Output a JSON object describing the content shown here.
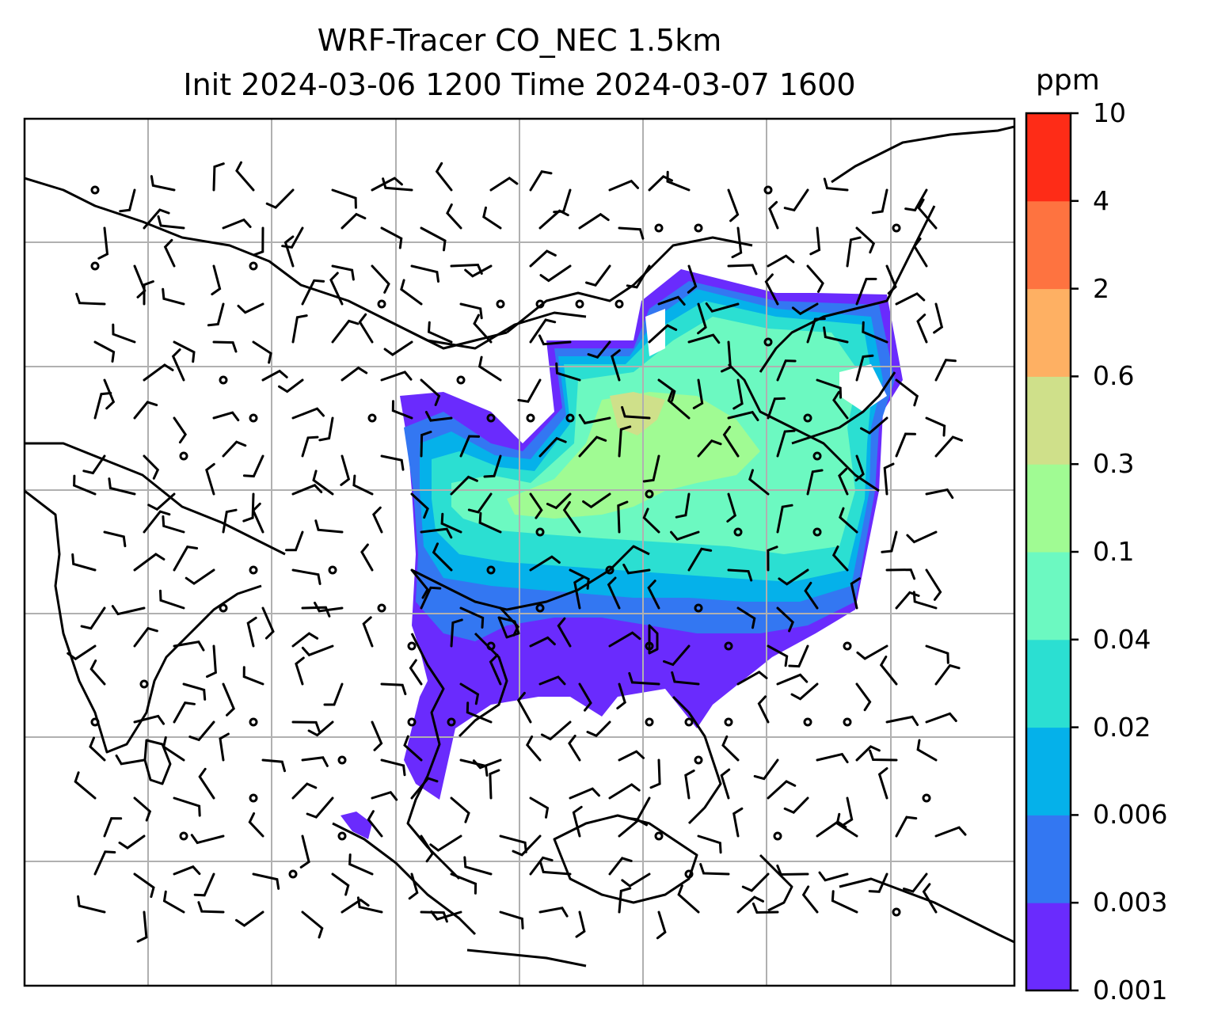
{
  "title_line1": "WRF-Tracer CO_NEC 1.5km",
  "title_line2": "Init 2024-03-06 1200 Time 2024-03-07 1600",
  "colorbar": {
    "unit": "ppm",
    "tick_labels": [
      "0.001",
      "0.003",
      "0.006",
      "0.02",
      "0.04",
      "0.1",
      "0.3",
      "0.6",
      "2",
      "4",
      "10"
    ],
    "colors": [
      "#6a2bfd",
      "#3377f2",
      "#05b1ea",
      "#2bdfd2",
      "#6cf9c1",
      "#a0fb93",
      "#cfe08a",
      "#feb063",
      "#fe7340",
      "#fe2c17"
    ]
  },
  "map": {
    "field": "CO_NEC tracer concentration",
    "overlay": "wind barbs",
    "gridlines": true,
    "coastlines": true,
    "border_color": "#000000",
    "gridline_color": "#b0b0b0"
  }
}
